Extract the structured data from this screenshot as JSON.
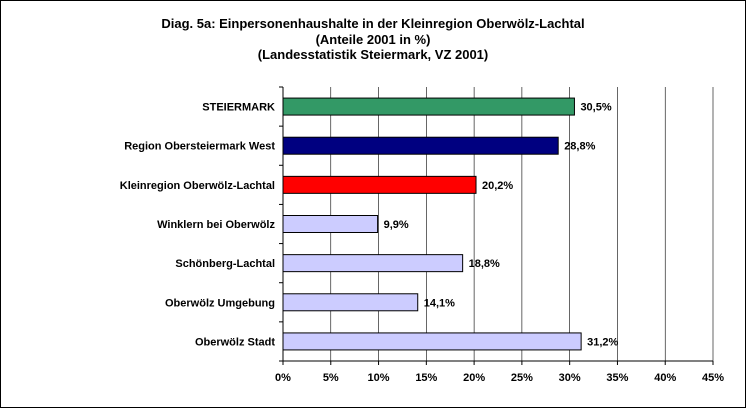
{
  "chart_data": {
    "type": "bar",
    "orientation": "horizontal",
    "title": "Diag. 5a: Einpersonenhaushalte  in der Kleinregion  Oberwölz-Lachtal",
    "subtitle": "(Anteile 2001 in %)",
    "source": "(Landesstatistik  Steiermark,  VZ 2001)",
    "categories": [
      "STEIERMARK",
      "Region Obersteiermark West",
      "Kleinregion Oberwölz-Lachtal",
      "Winklern bei Oberwölz",
      "Schönberg-Lachtal",
      "Oberwölz Umgebung",
      "Oberwölz Stadt"
    ],
    "values": [
      30.5,
      28.8,
      20.2,
      9.9,
      18.8,
      14.1,
      31.2
    ],
    "value_labels": [
      "30,5%",
      "28,8%",
      "20,2%",
      "9,9%",
      "18,8%",
      "14,1%",
      "31,2%"
    ],
    "colors": [
      "#339966",
      "#000080",
      "#ff0000",
      "#ccccff",
      "#ccccff",
      "#ccccff",
      "#ccccff"
    ],
    "xlim": [
      0,
      45
    ],
    "xticks": [
      "0%",
      "5%",
      "10%",
      "15%",
      "20%",
      "25%",
      "30%",
      "35%",
      "40%",
      "45%"
    ],
    "grid": "vertical",
    "legend": "none"
  }
}
